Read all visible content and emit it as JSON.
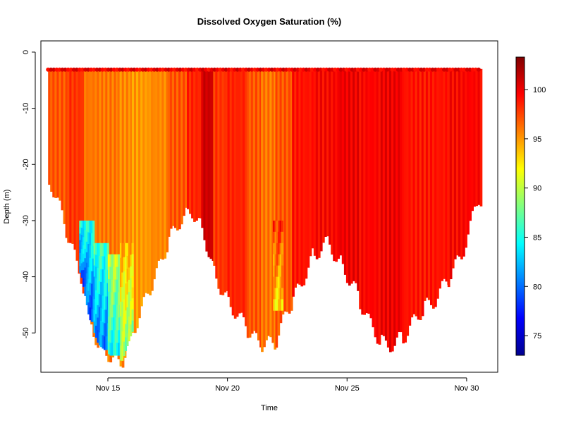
{
  "chart_data": {
    "type": "heatmap",
    "title": "Dissolved Oxygen Saturation (%)",
    "xlabel": "Time",
    "ylabel": "Depth (m)",
    "x_ticks": [
      "Nov 15",
      "Nov 20",
      "Nov 25",
      "Nov 30"
    ],
    "x_tick_days": [
      15,
      20,
      25,
      30
    ],
    "xlim_days": [
      12.2,
      31.3
    ],
    "y_ticks": [
      0,
      -10,
      -20,
      -30,
      -40,
      -50
    ],
    "ylim": [
      -57,
      2
    ],
    "colorbar": {
      "ticks": [
        75,
        80,
        85,
        90,
        95,
        100
      ],
      "range": [
        73,
        103.3
      ],
      "colors": [
        "#00008f",
        "#0000ff",
        "#0080ff",
        "#00ffff",
        "#80ff80",
        "#ffff00",
        "#ff8000",
        "#ff0000",
        "#800000"
      ]
    },
    "grid": false,
    "surface_depth": -3,
    "profile_bottoms": [
      {
        "day": 12.6,
        "depth": -23
      },
      {
        "day": 13.0,
        "depth": -28
      },
      {
        "day": 13.4,
        "depth": -34
      },
      {
        "day": 13.9,
        "depth": -40
      },
      {
        "day": 14.2,
        "depth": -47
      },
      {
        "day": 14.6,
        "depth": -52
      },
      {
        "day": 15.1,
        "depth": -54
      },
      {
        "day": 15.6,
        "depth": -55
      },
      {
        "day": 16.0,
        "depth": -50
      },
      {
        "day": 16.5,
        "depth": -45
      },
      {
        "day": 17.0,
        "depth": -40
      },
      {
        "day": 17.5,
        "depth": -34
      },
      {
        "day": 18.0,
        "depth": -30
      },
      {
        "day": 18.5,
        "depth": -28
      },
      {
        "day": 19.0,
        "depth": -32
      },
      {
        "day": 19.5,
        "depth": -40
      },
      {
        "day": 20.0,
        "depth": -44
      },
      {
        "day": 20.6,
        "depth": -48
      },
      {
        "day": 21.3,
        "depth": -52
      },
      {
        "day": 22.0,
        "depth": -52
      },
      {
        "day": 22.5,
        "depth": -46
      },
      {
        "day": 23.0,
        "depth": -42
      },
      {
        "day": 23.6,
        "depth": -36
      },
      {
        "day": 24.2,
        "depth": -34
      },
      {
        "day": 24.8,
        "depth": -38
      },
      {
        "day": 25.3,
        "depth": -42
      },
      {
        "day": 25.9,
        "depth": -48
      },
      {
        "day": 26.5,
        "depth": -52
      },
      {
        "day": 27.0,
        "depth": -52
      },
      {
        "day": 27.5,
        "depth": -50
      },
      {
        "day": 28.1,
        "depth": -46
      },
      {
        "day": 28.7,
        "depth": -44
      },
      {
        "day": 29.3,
        "depth": -40
      },
      {
        "day": 29.8,
        "depth": -36
      },
      {
        "day": 30.5,
        "depth": -26
      }
    ],
    "high_oxygen_bands": [
      {
        "day_start": 12.5,
        "day_end": 13.3,
        "value": 97
      },
      {
        "day_start": 13.3,
        "day_end": 14.0,
        "value": 98
      },
      {
        "day_start": 14.0,
        "day_end": 14.8,
        "value": 96
      },
      {
        "day_start": 14.8,
        "day_end": 15.4,
        "value": 96
      },
      {
        "day_start": 15.4,
        "day_end": 16.0,
        "value": 95.5
      },
      {
        "day_start": 16.0,
        "day_end": 16.8,
        "value": 95
      },
      {
        "day_start": 16.8,
        "day_end": 17.5,
        "value": 95.5
      },
      {
        "day_start": 17.5,
        "day_end": 18.3,
        "value": 97
      },
      {
        "day_start": 18.3,
        "day_end": 18.9,
        "value": 98.5
      },
      {
        "day_start": 18.9,
        "day_end": 19.4,
        "value": 101
      },
      {
        "day_start": 19.4,
        "day_end": 20.0,
        "value": 98
      },
      {
        "day_start": 20.0,
        "day_end": 20.8,
        "value": 98.5
      },
      {
        "day_start": 20.8,
        "day_end": 21.4,
        "value": 97
      },
      {
        "day_start": 21.4,
        "day_end": 22.0,
        "value": 96
      },
      {
        "day_start": 22.0,
        "day_end": 22.7,
        "value": 97
      },
      {
        "day_start": 22.7,
        "day_end": 23.6,
        "value": 99
      },
      {
        "day_start": 23.6,
        "day_end": 24.6,
        "value": 99.5
      },
      {
        "day_start": 24.6,
        "day_end": 25.5,
        "value": 100
      },
      {
        "day_start": 25.5,
        "day_end": 26.4,
        "value": 99.5
      },
      {
        "day_start": 26.4,
        "day_end": 27.3,
        "value": 100
      },
      {
        "day_start": 27.3,
        "day_end": 28.2,
        "value": 99
      },
      {
        "day_start": 28.2,
        "day_end": 29.2,
        "value": 99
      },
      {
        "day_start": 29.2,
        "day_end": 30.6,
        "value": 99.5
      }
    ],
    "low_oxygen_zones": [
      {
        "day_start": 13.8,
        "day_end": 14.4,
        "depth_top": -30,
        "depth_bottom": -48,
        "value": 79
      },
      {
        "day_start": 14.4,
        "day_end": 15.0,
        "depth_top": -34,
        "depth_bottom": -53,
        "value": 80
      },
      {
        "day_start": 15.0,
        "day_end": 15.5,
        "depth_top": -36,
        "depth_bottom": -54,
        "value": 84
      },
      {
        "day_start": 15.5,
        "day_end": 16.0,
        "depth_top": -34,
        "depth_bottom": -55,
        "value": 88
      },
      {
        "day_start": 21.9,
        "day_end": 22.3,
        "depth_top": -30,
        "depth_bottom": -46,
        "value": 92
      }
    ]
  }
}
